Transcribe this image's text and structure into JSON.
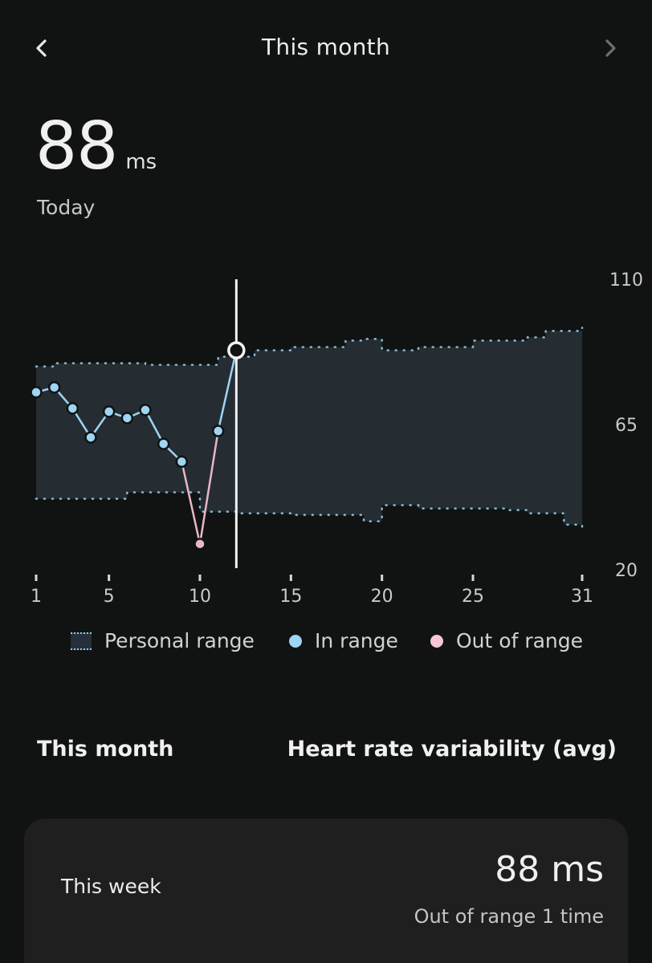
{
  "header": {
    "title": "This month",
    "prev_icon": "chevron-left-icon",
    "next_icon": "chevron-right-icon"
  },
  "summary": {
    "value": "88",
    "unit": "ms",
    "period": "Today"
  },
  "chart_data": {
    "type": "line",
    "x_ticks": [
      "1",
      "5",
      "10",
      "15",
      "20",
      "25",
      "31"
    ],
    "y_ticks": [
      "110",
      "65",
      "20"
    ],
    "ylim": [
      20,
      110
    ],
    "xlim": [
      1,
      31
    ],
    "personal_range": {
      "upper": [
        [
          1,
          83
        ],
        [
          2,
          84
        ],
        [
          7,
          83.5
        ],
        [
          10,
          83.5
        ],
        [
          11,
          86
        ],
        [
          12,
          86
        ],
        [
          13,
          88
        ],
        [
          15,
          89
        ],
        [
          18,
          91
        ],
        [
          19,
          91.5
        ],
        [
          20,
          88
        ],
        [
          22,
          89
        ],
        [
          25,
          91
        ],
        [
          28,
          92
        ],
        [
          29,
          94
        ],
        [
          31,
          95
        ]
      ],
      "lower": [
        [
          1,
          42
        ],
        [
          5,
          42
        ],
        [
          6,
          44
        ],
        [
          9,
          44
        ],
        [
          10,
          38
        ],
        [
          12,
          37.5
        ],
        [
          15,
          37
        ],
        [
          19,
          35
        ],
        [
          20,
          40
        ],
        [
          22,
          39
        ],
        [
          27,
          38.5
        ],
        [
          28,
          37.5
        ],
        [
          30,
          34
        ],
        [
          31,
          33
        ]
      ]
    },
    "series": [
      {
        "values": [
          [
            1,
            75
          ],
          [
            2,
            76.5
          ],
          [
            3,
            70
          ],
          [
            4,
            61
          ],
          [
            5,
            69
          ],
          [
            6,
            67
          ],
          [
            7,
            69.5
          ],
          [
            8,
            59
          ],
          [
            9,
            53.5
          ],
          [
            10,
            28
          ],
          [
            11,
            63
          ],
          [
            12,
            88
          ]
        ],
        "in_range_color": "#9ed4f4",
        "out_of_range_color": "#e9b6c8",
        "out_of_range_days": [
          10
        ]
      }
    ],
    "selected_day": 12,
    "legend": [
      "Personal range",
      "In range",
      "Out of range"
    ],
    "colors": {
      "range_fill": "#252d33",
      "range_border": "#8fd0f0",
      "in_range": "#9ed4f4",
      "out_of_range": "#e9b6c8",
      "cursor": "#f2f2f2"
    }
  },
  "legend": {
    "personal_range": "Personal range",
    "in_range": "In range",
    "out_of_range": "Out of range"
  },
  "section": {
    "left": "This month",
    "right": "Heart rate variability (avg)"
  },
  "card": {
    "label": "This week",
    "value": "88 ms",
    "subtext": "Out of range 1 time"
  }
}
